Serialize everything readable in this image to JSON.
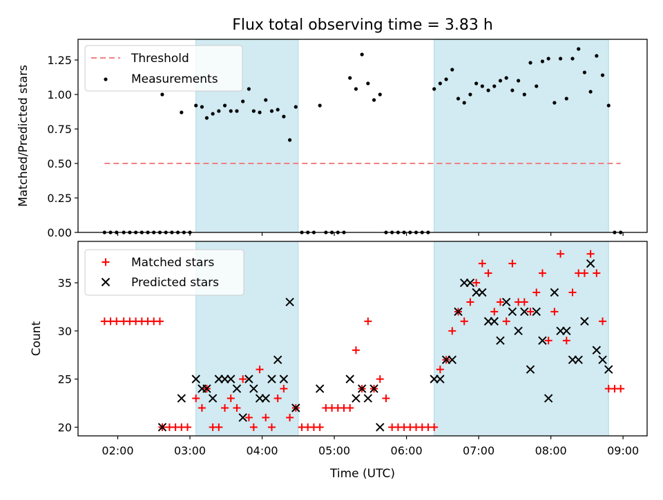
{
  "title": "Flux total observing time = 3.83 h",
  "chart_data": [
    {
      "type": "scatter",
      "panel": "top",
      "ylabel": "Matched/Predicted stars",
      "ylim": [
        0,
        1.4
      ],
      "yticks": [
        0.0,
        0.25,
        0.5,
        0.75,
        1.0,
        1.25
      ],
      "ytick_labels": [
        "0.00",
        "0.25",
        "0.50",
        "0.75",
        "1.00",
        "1.25"
      ],
      "threshold": {
        "name": "Threshold",
        "y": 0.5,
        "x_start": "01:49",
        "x_end": "08:58",
        "color": "#f08080"
      },
      "legend": {
        "placement": "top-left",
        "entries": [
          "Threshold",
          "Measurements"
        ]
      },
      "series": [
        {
          "name": "Measurements",
          "color": "#000000",
          "points": [
            [
              "01:49",
              0
            ],
            [
              "01:54",
              0
            ],
            [
              "01:59",
              0
            ],
            [
              "02:05",
              0
            ],
            [
              "02:10",
              0
            ],
            [
              "02:15",
              0
            ],
            [
              "02:20",
              0
            ],
            [
              "02:25",
              0
            ],
            [
              "02:30",
              0
            ],
            [
              "02:35",
              0
            ],
            [
              "02:40",
              0
            ],
            [
              "02:45",
              0
            ],
            [
              "02:50",
              0
            ],
            [
              "02:55",
              0
            ],
            [
              "03:00",
              0
            ],
            [
              "02:37",
              1.0
            ],
            [
              "02:53",
              0.87
            ],
            [
              "03:05",
              0.92
            ],
            [
              "03:10",
              0.91
            ],
            [
              "03:14",
              0.83
            ],
            [
              "03:19",
              0.86
            ],
            [
              "03:24",
              0.88
            ],
            [
              "03:29",
              0.92
            ],
            [
              "03:34",
              0.88
            ],
            [
              "03:39",
              0.88
            ],
            [
              "03:44",
              0.95
            ],
            [
              "03:49",
              1.04
            ],
            [
              "03:53",
              0.88
            ],
            [
              "03:58",
              0.87
            ],
            [
              "04:03",
              0.96
            ],
            [
              "04:08",
              0.88
            ],
            [
              "04:13",
              0.89
            ],
            [
              "04:18",
              0.84
            ],
            [
              "04:23",
              0.67
            ],
            [
              "04:28",
              0.91
            ],
            [
              "04:33",
              0
            ],
            [
              "04:38",
              0
            ],
            [
              "04:43",
              0
            ],
            [
              "04:48",
              0.92
            ],
            [
              "04:53",
              0
            ],
            [
              "04:58",
              0
            ],
            [
              "05:03",
              0
            ],
            [
              "05:08",
              0
            ],
            [
              "05:13",
              1.12
            ],
            [
              "05:18",
              1.04
            ],
            [
              "05:23",
              1.29
            ],
            [
              "05:28",
              1.08
            ],
            [
              "05:33",
              0.96
            ],
            [
              "05:38",
              1.0
            ],
            [
              "05:43",
              0
            ],
            [
              "05:48",
              0
            ],
            [
              "05:53",
              0
            ],
            [
              "05:58",
              0
            ],
            [
              "06:03",
              0
            ],
            [
              "06:08",
              0
            ],
            [
              "06:13",
              0
            ],
            [
              "06:18",
              0
            ],
            [
              "06:23",
              1.04
            ],
            [
              "06:28",
              1.08
            ],
            [
              "06:33",
              1.11
            ],
            [
              "06:38",
              1.18
            ],
            [
              "06:43",
              0.97
            ],
            [
              "06:48",
              0.94
            ],
            [
              "06:53",
              1.0
            ],
            [
              "06:58",
              1.08
            ],
            [
              "07:03",
              1.06
            ],
            [
              "07:08",
              1.03
            ],
            [
              "07:13",
              1.06
            ],
            [
              "07:18",
              1.1
            ],
            [
              "07:23",
              1.12
            ],
            [
              "07:28",
              1.03
            ],
            [
              "07:33",
              1.1
            ],
            [
              "07:38",
              1.0
            ],
            [
              "07:43",
              1.23
            ],
            [
              "07:48",
              1.06
            ],
            [
              "07:53",
              1.24
            ],
            [
              "07:58",
              1.26
            ],
            [
              "08:03",
              0.94
            ],
            [
              "08:08",
              1.26
            ],
            [
              "08:13",
              0.97
            ],
            [
              "08:18",
              1.26
            ],
            [
              "08:23",
              1.33
            ],
            [
              "08:28",
              1.16
            ],
            [
              "08:33",
              1.02
            ],
            [
              "08:38",
              1.28
            ],
            [
              "08:43",
              1.14
            ],
            [
              "08:48",
              0.92
            ],
            [
              "08:53",
              0
            ],
            [
              "08:58",
              0
            ]
          ]
        }
      ],
      "shaded_spans": [
        [
          "03:05",
          "04:30"
        ],
        [
          "06:23",
          "08:48"
        ]
      ]
    },
    {
      "type": "scatter",
      "panel": "bottom",
      "xlabel": "Time (UTC)",
      "ylabel": "Count",
      "xlim": [
        "01:27",
        "09:20"
      ],
      "ylim": [
        19.1,
        39.3
      ],
      "xtick_labels": [
        "02:00",
        "03:00",
        "04:00",
        "05:00",
        "06:00",
        "07:00",
        "08:00",
        "09:00"
      ],
      "yticks": [
        20,
        25,
        30,
        35
      ],
      "ytick_labels": [
        "20",
        "25",
        "30",
        "35"
      ],
      "legend": {
        "placement": "top-left",
        "entries": [
          "Matched stars",
          "Predicted stars"
        ]
      },
      "series": [
        {
          "name": "Matched stars",
          "color": "#ff0000",
          "marker": "plus",
          "points": [
            [
              "01:49",
              31
            ],
            [
              "01:54",
              31
            ],
            [
              "01:59",
              31
            ],
            [
              "02:05",
              31
            ],
            [
              "02:10",
              31
            ],
            [
              "02:15",
              31
            ],
            [
              "02:20",
              31
            ],
            [
              "02:25",
              31
            ],
            [
              "02:30",
              31
            ],
            [
              "02:35",
              31
            ],
            [
              "02:37",
              20
            ],
            [
              "02:43",
              20
            ],
            [
              "02:48",
              20
            ],
            [
              "02:53",
              20
            ],
            [
              "02:58",
              20
            ],
            [
              "03:05",
              23
            ],
            [
              "03:10",
              22
            ],
            [
              "03:14",
              24
            ],
            [
              "03:19",
              20
            ],
            [
              "03:24",
              20
            ],
            [
              "03:29",
              22
            ],
            [
              "03:34",
              23
            ],
            [
              "03:39",
              22
            ],
            [
              "03:44",
              25
            ],
            [
              "03:49",
              21
            ],
            [
              "03:53",
              20
            ],
            [
              "03:58",
              26
            ],
            [
              "04:03",
              21
            ],
            [
              "04:08",
              20
            ],
            [
              "04:13",
              23
            ],
            [
              "04:18",
              24
            ],
            [
              "04:23",
              21
            ],
            [
              "04:28",
              22
            ],
            [
              "04:33",
              20
            ],
            [
              "04:38",
              20
            ],
            [
              "04:43",
              20
            ],
            [
              "04:48",
              20
            ],
            [
              "04:53",
              22
            ],
            [
              "04:58",
              22
            ],
            [
              "05:03",
              22
            ],
            [
              "05:08",
              22
            ],
            [
              "05:13",
              22
            ],
            [
              "05:18",
              28
            ],
            [
              "05:23",
              24
            ],
            [
              "05:28",
              31
            ],
            [
              "05:33",
              24
            ],
            [
              "05:38",
              25
            ],
            [
              "05:43",
              23
            ],
            [
              "05:48",
              20
            ],
            [
              "05:53",
              20
            ],
            [
              "05:58",
              20
            ],
            [
              "06:03",
              20
            ],
            [
              "06:08",
              20
            ],
            [
              "06:13",
              20
            ],
            [
              "06:18",
              20
            ],
            [
              "06:23",
              20
            ],
            [
              "06:28",
              26
            ],
            [
              "06:33",
              27
            ],
            [
              "06:38",
              30
            ],
            [
              "06:43",
              32
            ],
            [
              "06:48",
              31
            ],
            [
              "06:53",
              33
            ],
            [
              "06:58",
              35
            ],
            [
              "07:03",
              37
            ],
            [
              "07:08",
              36
            ],
            [
              "07:13",
              32
            ],
            [
              "07:18",
              33
            ],
            [
              "07:23",
              31
            ],
            [
              "07:28",
              37
            ],
            [
              "07:33",
              33
            ],
            [
              "07:38",
              33
            ],
            [
              "07:43",
              32
            ],
            [
              "07:48",
              34
            ],
            [
              "07:53",
              36
            ],
            [
              "07:58",
              29
            ],
            [
              "08:03",
              32
            ],
            [
              "08:08",
              38
            ],
            [
              "08:13",
              29
            ],
            [
              "08:18",
              34
            ],
            [
              "08:23",
              36
            ],
            [
              "08:28",
              36
            ],
            [
              "08:33",
              38
            ],
            [
              "08:38",
              36
            ],
            [
              "08:43",
              31
            ],
            [
              "08:48",
              24
            ],
            [
              "08:53",
              24
            ],
            [
              "08:58",
              24
            ]
          ]
        },
        {
          "name": "Predicted stars",
          "color": "#000000",
          "marker": "x",
          "points": [
            [
              "02:37",
              20
            ],
            [
              "02:53",
              23
            ],
            [
              "03:05",
              25
            ],
            [
              "03:10",
              24
            ],
            [
              "03:14",
              24
            ],
            [
              "03:19",
              23
            ],
            [
              "03:24",
              25
            ],
            [
              "03:29",
              25
            ],
            [
              "03:34",
              25
            ],
            [
              "03:39",
              24
            ],
            [
              "03:44",
              21
            ],
            [
              "03:49",
              25
            ],
            [
              "03:53",
              24
            ],
            [
              "03:58",
              23
            ],
            [
              "04:03",
              23
            ],
            [
              "04:08",
              25
            ],
            [
              "04:13",
              27
            ],
            [
              "04:18",
              25
            ],
            [
              "04:23",
              33
            ],
            [
              "04:28",
              22
            ],
            [
              "04:48",
              24
            ],
            [
              "05:13",
              25
            ],
            [
              "05:18",
              23
            ],
            [
              "05:23",
              24
            ],
            [
              "05:28",
              23
            ],
            [
              "05:33",
              24
            ],
            [
              "05:38",
              20
            ],
            [
              "06:23",
              25
            ],
            [
              "06:28",
              25
            ],
            [
              "06:33",
              27
            ],
            [
              "06:38",
              27
            ],
            [
              "06:43",
              32
            ],
            [
              "06:48",
              35
            ],
            [
              "06:53",
              35
            ],
            [
              "06:58",
              34
            ],
            [
              "07:03",
              34
            ],
            [
              "07:08",
              31
            ],
            [
              "07:13",
              31
            ],
            [
              "07:18",
              29
            ],
            [
              "07:23",
              33
            ],
            [
              "07:28",
              32
            ],
            [
              "07:33",
              30
            ],
            [
              "07:38",
              32
            ],
            [
              "07:43",
              26
            ],
            [
              "07:48",
              32
            ],
            [
              "07:53",
              29
            ],
            [
              "07:58",
              23
            ],
            [
              "08:03",
              34
            ],
            [
              "08:08",
              30
            ],
            [
              "08:13",
              30
            ],
            [
              "08:18",
              27
            ],
            [
              "08:23",
              27
            ],
            [
              "08:28",
              31
            ],
            [
              "08:33",
              37
            ],
            [
              "08:38",
              28
            ],
            [
              "08:43",
              27
            ],
            [
              "08:48",
              26
            ]
          ]
        }
      ],
      "shaded_spans": [
        [
          "03:05",
          "04:30"
        ],
        [
          "06:23",
          "08:48"
        ]
      ]
    }
  ],
  "colors": {
    "shade": "#add8e6",
    "threshold": "#f08080",
    "matched": "#ff0000",
    "predicted": "#000000"
  }
}
